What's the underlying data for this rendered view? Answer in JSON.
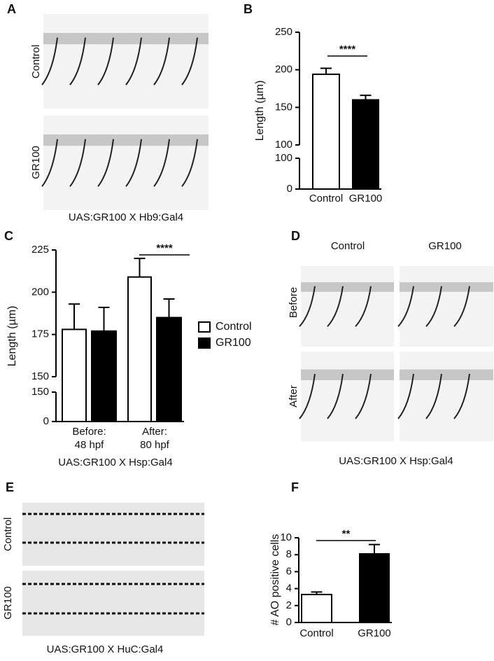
{
  "panel_labels": [
    "A",
    "B",
    "C",
    "D",
    "E",
    "F"
  ],
  "figure_a": {
    "row_labels": [
      "Control",
      "GR100"
    ],
    "caption": "UAS:GR100 X Hb9:Gal4"
  },
  "figure_d": {
    "column_labels": [
      "Control",
      "GR100"
    ],
    "row_labels": [
      "Before",
      "After"
    ],
    "caption": "UAS:GR100 X Hsp:Gal4"
  },
  "figure_e": {
    "row_labels": [
      "Control",
      "GR100"
    ],
    "caption": "UAS:GR100 X HuC:Gal4"
  },
  "chart_data": [
    {
      "type": "bar",
      "ylabel": "Length (µm)",
      "categories": [
        "Control",
        "GR100"
      ],
      "values": [
        194,
        160
      ],
      "errors": [
        8,
        6
      ],
      "colors": [
        "#ffffff",
        "#000000"
      ],
      "ylim": [
        100,
        250
      ],
      "yticks": [
        100,
        150,
        200,
        250
      ],
      "ylim_lower": [
        0,
        100
      ],
      "yticks_lower": [
        0,
        100
      ],
      "significance": "****"
    },
    {
      "type": "bar",
      "ylabel": "Length (µm)",
      "categories": [
        [
          "Before:",
          "48 hpf"
        ],
        [
          "After:",
          "80 hpf"
        ]
      ],
      "series": [
        {
          "name": "Control",
          "color": "#ffffff",
          "values": [
            178,
            209
          ],
          "errors": [
            15,
            11
          ]
        },
        {
          "name": "GR100",
          "color": "#000000",
          "values": [
            177,
            185
          ],
          "errors": [
            14,
            11
          ]
        }
      ],
      "ylim": [
        150,
        225
      ],
      "yticks": [
        150,
        175,
        200,
        225
      ],
      "ylim_lower": [
        0,
        150
      ],
      "yticks_lower": [
        0,
        150
      ],
      "significance": "****",
      "caption": "UAS:GR100 X Hsp:Gal4",
      "legend": "right"
    },
    {
      "type": "bar",
      "ylabel": "# AO positive cells",
      "categories": [
        "Control",
        "GR100"
      ],
      "values": [
        3.3,
        8.1
      ],
      "errors": [
        0.3,
        1.1
      ],
      "colors": [
        "#ffffff",
        "#000000"
      ],
      "ylim": [
        0,
        10
      ],
      "yticks": [
        0,
        2,
        4,
        6,
        8,
        10
      ],
      "significance": "**"
    }
  ]
}
